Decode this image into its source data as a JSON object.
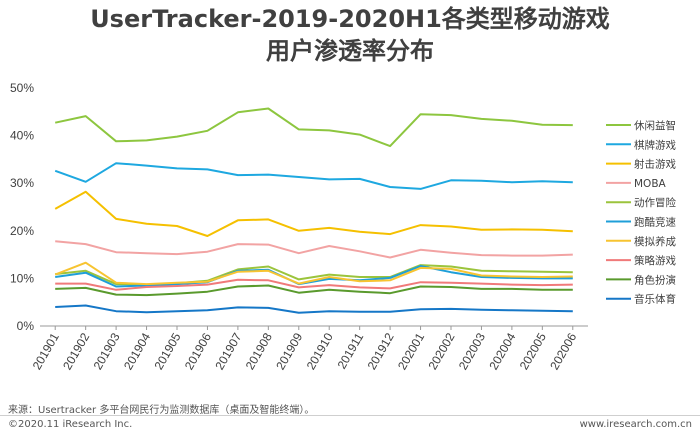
{
  "header": {
    "title_line1": "UserTracker-2019-2020H1各类型移动游戏",
    "title_line2": "用户渗透率分布"
  },
  "footer": {
    "source": "来源：Usertracker 多平台网民行为监测数据库（桌面及智能终端）。",
    "copyright": "©2020.11 iResearch Inc.",
    "website": "www.iresearch.com.cn"
  },
  "chart_data": {
    "type": "line",
    "categories": [
      "201901",
      "201902",
      "201903",
      "201904",
      "201905",
      "201906",
      "201907",
      "201908",
      "201909",
      "201910",
      "201911",
      "201912",
      "202001",
      "202002",
      "202003",
      "202004",
      "202005",
      "202006"
    ],
    "yticks": [
      "0%",
      "10%",
      "20%",
      "30%",
      "40%",
      "50%"
    ],
    "ylim": [
      0,
      50
    ],
    "legend_position": "right",
    "series": [
      {
        "name": "休闲益智",
        "color": "#8DC63F",
        "values": [
          42.7,
          44.1,
          38.8,
          39.0,
          39.8,
          41.0,
          44.9,
          45.7,
          41.3,
          41.1,
          40.2,
          37.8,
          44.5,
          44.3,
          43.5,
          43.1,
          42.3,
          42.2
        ]
      },
      {
        "name": "棋牌游戏",
        "color": "#1EA8E0",
        "values": [
          32.6,
          30.3,
          34.2,
          33.7,
          33.1,
          32.9,
          31.7,
          31.8,
          31.3,
          30.8,
          30.9,
          29.2,
          28.8,
          30.6,
          30.5,
          30.2,
          30.4,
          30.2
        ]
      },
      {
        "name": "射击游戏",
        "color": "#F5C000",
        "values": [
          24.6,
          28.2,
          22.5,
          21.5,
          21.0,
          18.9,
          22.2,
          22.4,
          20.0,
          20.6,
          19.8,
          19.3,
          21.2,
          20.9,
          20.2,
          20.3,
          20.2,
          19.9
        ]
      },
      {
        "name": "MOBA",
        "color": "#F2A3A3",
        "values": [
          17.8,
          17.2,
          15.5,
          15.3,
          15.1,
          15.6,
          17.2,
          17.1,
          15.3,
          16.8,
          15.7,
          14.4,
          16.0,
          15.4,
          14.9,
          14.8,
          14.8,
          15.0
        ]
      },
      {
        "name": "动作冒险",
        "color": "#9BC43C",
        "values": [
          10.9,
          11.6,
          8.8,
          8.7,
          9.0,
          9.5,
          11.9,
          12.5,
          9.8,
          10.8,
          10.3,
          10.3,
          12.8,
          12.5,
          11.6,
          11.5,
          11.4,
          11.3
        ]
      },
      {
        "name": "跑酷竞速",
        "color": "#1F9FD8",
        "values": [
          10.3,
          11.2,
          8.3,
          8.5,
          8.8,
          9.2,
          11.6,
          11.8,
          8.8,
          9.9,
          9.6,
          10.1,
          12.6,
          11.3,
          10.3,
          10.1,
          10.0,
          10.0
        ]
      },
      {
        "name": "模拟养成",
        "color": "#F7C431",
        "values": [
          10.8,
          13.3,
          9.1,
          8.8,
          9.1,
          9.3,
          11.4,
          11.6,
          8.9,
          10.3,
          9.4,
          9.6,
          12.2,
          12.0,
          10.6,
          10.4,
          10.3,
          10.4
        ]
      },
      {
        "name": "策略游戏",
        "color": "#F07A7A",
        "values": [
          8.9,
          8.9,
          7.6,
          8.2,
          8.4,
          8.7,
          9.7,
          9.6,
          8.1,
          8.6,
          8.1,
          7.9,
          9.2,
          9.1,
          8.9,
          8.7,
          8.6,
          8.7
        ]
      },
      {
        "name": "角色扮演",
        "color": "#5A9A2D",
        "values": [
          7.8,
          8.0,
          6.6,
          6.5,
          6.8,
          7.2,
          8.3,
          8.5,
          7.0,
          7.6,
          7.2,
          6.9,
          8.3,
          8.2,
          7.8,
          7.8,
          7.6,
          7.6
        ]
      },
      {
        "name": "音乐体育",
        "color": "#1577C7",
        "values": [
          4.0,
          4.3,
          3.1,
          2.9,
          3.1,
          3.3,
          3.9,
          3.8,
          2.8,
          3.1,
          3.0,
          3.0,
          3.5,
          3.6,
          3.4,
          3.3,
          3.2,
          3.1
        ]
      }
    ]
  }
}
